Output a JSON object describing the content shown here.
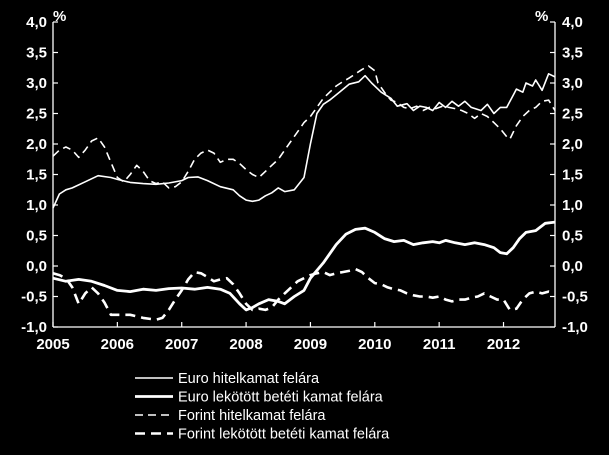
{
  "chart_data": {
    "type": "line",
    "title": "",
    "xlabel": "",
    "ylabel": "",
    "y_unit_left": "%",
    "y_unit_right": "%",
    "xlim": [
      2005.0,
      2012.8
    ],
    "ylim": [
      -1.0,
      4.0
    ],
    "y_ticks": [
      4.0,
      3.5,
      3.0,
      2.5,
      2.0,
      1.5,
      1.0,
      0.5,
      0.0,
      -0.5,
      -1.0
    ],
    "y_tick_labels": [
      "4,0",
      "3,5",
      "3,0",
      "2,5",
      "2,0",
      "1,5",
      "1,0",
      "0,5",
      "0,0",
      "-0,5",
      "-1,0"
    ],
    "x_ticks": [
      2005,
      2006,
      2007,
      2008,
      2009,
      2010,
      2011,
      2012
    ],
    "x_tick_labels": [
      "2005",
      "2006",
      "2007",
      "2008",
      "2009",
      "2010",
      "2011",
      "2012"
    ],
    "grid": false,
    "background": "#000000",
    "line_color": "#ffffff",
    "legend_position": "bottom",
    "series": [
      {
        "name": "Euro hitelkamat felára",
        "style": "thin-solid",
        "points": [
          [
            2005.0,
            0.95
          ],
          [
            2005.1,
            1.18
          ],
          [
            2005.2,
            1.25
          ],
          [
            2005.3,
            1.28
          ],
          [
            2005.5,
            1.38
          ],
          [
            2005.7,
            1.48
          ],
          [
            2005.9,
            1.45
          ],
          [
            2006.0,
            1.42
          ],
          [
            2006.2,
            1.37
          ],
          [
            2006.4,
            1.35
          ],
          [
            2006.6,
            1.34
          ],
          [
            2006.8,
            1.36
          ],
          [
            2007.0,
            1.4
          ],
          [
            2007.1,
            1.45
          ],
          [
            2007.25,
            1.46
          ],
          [
            2007.4,
            1.4
          ],
          [
            2007.6,
            1.3
          ],
          [
            2007.8,
            1.25
          ],
          [
            2007.9,
            1.15
          ],
          [
            2008.0,
            1.08
          ],
          [
            2008.1,
            1.06
          ],
          [
            2008.2,
            1.08
          ],
          [
            2008.3,
            1.15
          ],
          [
            2008.4,
            1.2
          ],
          [
            2008.5,
            1.28
          ],
          [
            2008.6,
            1.22
          ],
          [
            2008.75,
            1.25
          ],
          [
            2008.9,
            1.45
          ],
          [
            2009.0,
            2.0
          ],
          [
            2009.1,
            2.5
          ],
          [
            2009.2,
            2.65
          ],
          [
            2009.3,
            2.72
          ],
          [
            2009.45,
            2.85
          ],
          [
            2009.6,
            2.98
          ],
          [
            2009.75,
            3.02
          ],
          [
            2009.85,
            3.12
          ],
          [
            2009.95,
            3.0
          ],
          [
            2010.1,
            2.85
          ],
          [
            2010.25,
            2.75
          ],
          [
            2010.35,
            2.62
          ],
          [
            2010.5,
            2.66
          ],
          [
            2010.6,
            2.55
          ],
          [
            2010.7,
            2.62
          ],
          [
            2010.8,
            2.6
          ],
          [
            2010.9,
            2.55
          ],
          [
            2011.0,
            2.68
          ],
          [
            2011.1,
            2.6
          ],
          [
            2011.2,
            2.7
          ],
          [
            2011.3,
            2.62
          ],
          [
            2011.4,
            2.7
          ],
          [
            2011.5,
            2.6
          ],
          [
            2011.65,
            2.55
          ],
          [
            2011.75,
            2.65
          ],
          [
            2011.85,
            2.5
          ],
          [
            2011.95,
            2.6
          ],
          [
            2012.05,
            2.6
          ],
          [
            2012.15,
            2.8
          ],
          [
            2012.2,
            2.9
          ],
          [
            2012.3,
            2.85
          ],
          [
            2012.35,
            3.0
          ],
          [
            2012.45,
            2.95
          ],
          [
            2012.5,
            3.05
          ],
          [
            2012.6,
            2.88
          ],
          [
            2012.7,
            3.15
          ],
          [
            2012.8,
            3.1
          ]
        ]
      },
      {
        "name": "Euro lekötött betéti kamat felára",
        "style": "thick-solid",
        "points": [
          [
            2005.0,
            -0.2
          ],
          [
            2005.2,
            -0.25
          ],
          [
            2005.4,
            -0.22
          ],
          [
            2005.6,
            -0.25
          ],
          [
            2005.8,
            -0.32
          ],
          [
            2006.0,
            -0.4
          ],
          [
            2006.2,
            -0.42
          ],
          [
            2006.4,
            -0.38
          ],
          [
            2006.6,
            -0.4
          ],
          [
            2006.8,
            -0.37
          ],
          [
            2007.0,
            -0.36
          ],
          [
            2007.2,
            -0.38
          ],
          [
            2007.4,
            -0.35
          ],
          [
            2007.6,
            -0.38
          ],
          [
            2007.75,
            -0.45
          ],
          [
            2007.9,
            -0.62
          ],
          [
            2008.0,
            -0.72
          ],
          [
            2008.1,
            -0.68
          ],
          [
            2008.2,
            -0.62
          ],
          [
            2008.35,
            -0.55
          ],
          [
            2008.5,
            -0.58
          ],
          [
            2008.6,
            -0.62
          ],
          [
            2008.75,
            -0.5
          ],
          [
            2008.9,
            -0.4
          ],
          [
            2009.0,
            -0.2
          ],
          [
            2009.2,
            0.05
          ],
          [
            2009.4,
            0.35
          ],
          [
            2009.55,
            0.52
          ],
          [
            2009.7,
            0.6
          ],
          [
            2009.85,
            0.62
          ],
          [
            2010.0,
            0.55
          ],
          [
            2010.15,
            0.45
          ],
          [
            2010.3,
            0.4
          ],
          [
            2010.45,
            0.42
          ],
          [
            2010.6,
            0.35
          ],
          [
            2010.75,
            0.38
          ],
          [
            2010.9,
            0.4
          ],
          [
            2011.0,
            0.38
          ],
          [
            2011.1,
            0.42
          ],
          [
            2011.25,
            0.38
          ],
          [
            2011.4,
            0.35
          ],
          [
            2011.55,
            0.38
          ],
          [
            2011.7,
            0.35
          ],
          [
            2011.85,
            0.3
          ],
          [
            2011.95,
            0.22
          ],
          [
            2012.05,
            0.2
          ],
          [
            2012.15,
            0.3
          ],
          [
            2012.25,
            0.45
          ],
          [
            2012.35,
            0.55
          ],
          [
            2012.5,
            0.58
          ],
          [
            2012.65,
            0.7
          ],
          [
            2012.8,
            0.72
          ]
        ]
      },
      {
        "name": "Forint hitelkamat felára",
        "style": "thin-dashed",
        "points": [
          [
            2005.0,
            1.8
          ],
          [
            2005.1,
            1.9
          ],
          [
            2005.2,
            1.95
          ],
          [
            2005.3,
            1.9
          ],
          [
            2005.4,
            1.78
          ],
          [
            2005.5,
            1.9
          ],
          [
            2005.6,
            2.05
          ],
          [
            2005.7,
            2.1
          ],
          [
            2005.8,
            1.95
          ],
          [
            2005.9,
            1.7
          ],
          [
            2006.0,
            1.45
          ],
          [
            2006.1,
            1.38
          ],
          [
            2006.2,
            1.5
          ],
          [
            2006.3,
            1.65
          ],
          [
            2006.4,
            1.55
          ],
          [
            2006.5,
            1.4
          ],
          [
            2006.6,
            1.35
          ],
          [
            2006.7,
            1.38
          ],
          [
            2006.8,
            1.28
          ],
          [
            2006.9,
            1.3
          ],
          [
            2007.0,
            1.38
          ],
          [
            2007.1,
            1.55
          ],
          [
            2007.2,
            1.75
          ],
          [
            2007.3,
            1.85
          ],
          [
            2007.4,
            1.9
          ],
          [
            2007.5,
            1.85
          ],
          [
            2007.6,
            1.7
          ],
          [
            2007.7,
            1.75
          ],
          [
            2007.8,
            1.75
          ],
          [
            2007.9,
            1.68
          ],
          [
            2008.0,
            1.58
          ],
          [
            2008.1,
            1.5
          ],
          [
            2008.2,
            1.45
          ],
          [
            2008.3,
            1.55
          ],
          [
            2008.4,
            1.65
          ],
          [
            2008.5,
            1.75
          ],
          [
            2008.6,
            1.9
          ],
          [
            2008.7,
            2.05
          ],
          [
            2008.8,
            2.2
          ],
          [
            2008.9,
            2.35
          ],
          [
            2009.0,
            2.45
          ],
          [
            2009.1,
            2.6
          ],
          [
            2009.2,
            2.75
          ],
          [
            2009.3,
            2.85
          ],
          [
            2009.4,
            2.95
          ],
          [
            2009.5,
            3.02
          ],
          [
            2009.6,
            3.08
          ],
          [
            2009.7,
            3.15
          ],
          [
            2009.8,
            3.22
          ],
          [
            2009.9,
            3.28
          ],
          [
            2010.0,
            3.2
          ],
          [
            2010.05,
            3.0
          ],
          [
            2010.15,
            2.85
          ],
          [
            2010.25,
            2.72
          ],
          [
            2010.35,
            2.68
          ],
          [
            2010.45,
            2.6
          ],
          [
            2010.55,
            2.58
          ],
          [
            2010.65,
            2.62
          ],
          [
            2010.75,
            2.55
          ],
          [
            2010.85,
            2.6
          ],
          [
            2010.95,
            2.58
          ],
          [
            2011.05,
            2.62
          ],
          [
            2011.15,
            2.6
          ],
          [
            2011.25,
            2.58
          ],
          [
            2011.35,
            2.55
          ],
          [
            2011.45,
            2.5
          ],
          [
            2011.55,
            2.42
          ],
          [
            2011.65,
            2.5
          ],
          [
            2011.75,
            2.45
          ],
          [
            2011.85,
            2.35
          ],
          [
            2011.95,
            2.25
          ],
          [
            2012.05,
            2.12
          ],
          [
            2012.1,
            2.08
          ],
          [
            2012.2,
            2.3
          ],
          [
            2012.3,
            2.45
          ],
          [
            2012.4,
            2.55
          ],
          [
            2012.5,
            2.6
          ],
          [
            2012.6,
            2.7
          ],
          [
            2012.7,
            2.72
          ],
          [
            2012.8,
            2.55
          ]
        ]
      },
      {
        "name": "Forint lekötött betéti kamat felára",
        "style": "thick-dashed",
        "points": [
          [
            2005.0,
            -0.12
          ],
          [
            2005.1,
            -0.15
          ],
          [
            2005.2,
            -0.2
          ],
          [
            2005.3,
            -0.35
          ],
          [
            2005.4,
            -0.62
          ],
          [
            2005.5,
            -0.45
          ],
          [
            2005.6,
            -0.35
          ],
          [
            2005.7,
            -0.45
          ],
          [
            2005.8,
            -0.6
          ],
          [
            2005.9,
            -0.8
          ],
          [
            2006.0,
            -0.8
          ],
          [
            2006.2,
            -0.8
          ],
          [
            2006.4,
            -0.85
          ],
          [
            2006.6,
            -0.88
          ],
          [
            2006.7,
            -0.85
          ],
          [
            2006.8,
            -0.72
          ],
          [
            2006.9,
            -0.55
          ],
          [
            2007.0,
            -0.4
          ],
          [
            2007.1,
            -0.22
          ],
          [
            2007.2,
            -0.1
          ],
          [
            2007.3,
            -0.12
          ],
          [
            2007.4,
            -0.18
          ],
          [
            2007.5,
            -0.25
          ],
          [
            2007.6,
            -0.22
          ],
          [
            2007.7,
            -0.2
          ],
          [
            2007.8,
            -0.3
          ],
          [
            2007.9,
            -0.45
          ],
          [
            2008.0,
            -0.62
          ],
          [
            2008.1,
            -0.72
          ],
          [
            2008.2,
            -0.7
          ],
          [
            2008.3,
            -0.72
          ],
          [
            2008.4,
            -0.68
          ],
          [
            2008.5,
            -0.55
          ],
          [
            2008.6,
            -0.45
          ],
          [
            2008.7,
            -0.35
          ],
          [
            2008.8,
            -0.25
          ],
          [
            2008.9,
            -0.2
          ],
          [
            2009.0,
            -0.15
          ],
          [
            2009.1,
            -0.12
          ],
          [
            2009.2,
            -0.1
          ],
          [
            2009.3,
            -0.15
          ],
          [
            2009.4,
            -0.12
          ],
          [
            2009.5,
            -0.1
          ],
          [
            2009.6,
            -0.08
          ],
          [
            2009.7,
            -0.05
          ],
          [
            2009.8,
            -0.1
          ],
          [
            2009.9,
            -0.2
          ],
          [
            2010.0,
            -0.28
          ],
          [
            2010.1,
            -0.3
          ],
          [
            2010.2,
            -0.35
          ],
          [
            2010.3,
            -0.38
          ],
          [
            2010.4,
            -0.4
          ],
          [
            2010.5,
            -0.45
          ],
          [
            2010.6,
            -0.48
          ],
          [
            2010.7,
            -0.5
          ],
          [
            2010.8,
            -0.5
          ],
          [
            2010.9,
            -0.52
          ],
          [
            2011.0,
            -0.5
          ],
          [
            2011.1,
            -0.55
          ],
          [
            2011.2,
            -0.58
          ],
          [
            2011.3,
            -0.55
          ],
          [
            2011.4,
            -0.55
          ],
          [
            2011.5,
            -0.52
          ],
          [
            2011.6,
            -0.5
          ],
          [
            2011.7,
            -0.45
          ],
          [
            2011.8,
            -0.5
          ],
          [
            2011.9,
            -0.55
          ],
          [
            2012.0,
            -0.55
          ],
          [
            2012.1,
            -0.72
          ],
          [
            2012.2,
            -0.7
          ],
          [
            2012.3,
            -0.55
          ],
          [
            2012.4,
            -0.45
          ],
          [
            2012.5,
            -0.42
          ],
          [
            2012.6,
            -0.45
          ],
          [
            2012.7,
            -0.42
          ],
          [
            2012.8,
            -0.45
          ]
        ]
      }
    ]
  }
}
